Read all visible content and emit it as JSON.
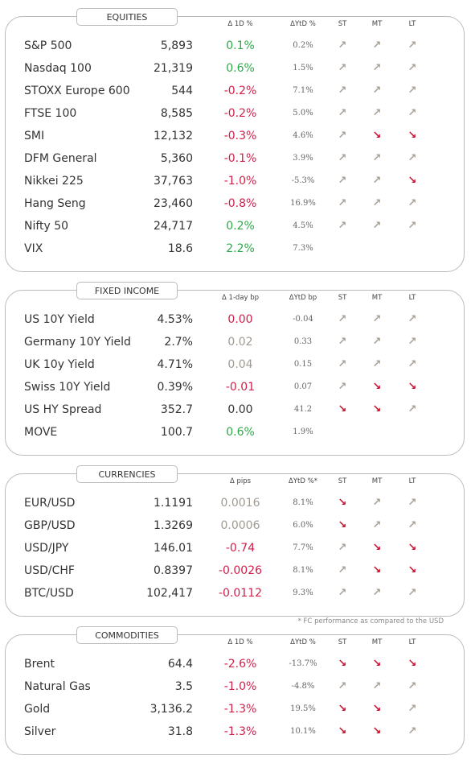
{
  "sections": [
    {
      "title": "EQUITIES",
      "headers": [
        "Δ 1D %",
        "ΔYtD %",
        "ST",
        "MT",
        "LT"
      ],
      "rows": [
        {
          "cells": [
            "S&P 500",
            "5,893",
            "0.1%",
            "0.2%",
            "↗",
            "↗",
            "↗"
          ],
          "change_color": "#2ea84a"
        },
        {
          "cells": [
            "Nasdaq 100",
            "21,319",
            "0.6%",
            "1.5%",
            "↗",
            "↗",
            "↗"
          ],
          "change_color": "#2ea84a"
        },
        {
          "cells": [
            "STOXX Europe 600",
            "544",
            "-0.2%",
            "7.1%",
            "↗",
            "↗",
            "↗"
          ],
          "change_color": "#d0204a"
        },
        {
          "cells": [
            "FTSE 100",
            "8,585",
            "-0.2%",
            "5.0%",
            "↗",
            "↗",
            "↗"
          ],
          "change_color": "#d0204a"
        },
        {
          "cells": [
            "SMI",
            "12,132",
            "-0.3%",
            "4.6%",
            "↗",
            "↘",
            "↘"
          ],
          "change_color": "#d0204a"
        },
        {
          "cells": [
            "DFM General",
            "5,360",
            "-0.1%",
            "3.9%",
            "↗",
            "↗",
            "↗"
          ],
          "change_color": "#d0204a"
        },
        {
          "cells": [
            "Nikkei 225",
            "37,763",
            "-1.0%",
            "-5.3%",
            "↗",
            "↗",
            "↘"
          ],
          "change_color": "#d0204a"
        },
        {
          "cells": [
            "Hang Seng",
            "23,460",
            "-0.8%",
            "16.9%",
            "↗",
            "↗",
            "↗"
          ],
          "change_color": "#d0204a"
        },
        {
          "cells": [
            "Nifty  50",
            "24,717",
            "0.2%",
            "4.5%",
            "↗",
            "↗",
            "↗"
          ],
          "change_color": "#2ea84a"
        },
        {
          "cells": [
            "VIX",
            "18.6",
            "2.2%",
            "7.3%",
            null,
            null,
            null
          ],
          "change_color": "#2ea84a"
        }
      ]
    },
    {
      "title": "FIXED INCOME",
      "headers": [
        "Δ 1-day bp",
        "ΔYtD bp",
        "ST",
        "MT",
        "LT"
      ],
      "rows": [
        {
          "cells": [
            "US 10Y Yield",
            "4.53%",
            "0.00",
            "-0.04",
            "↗",
            "↗",
            "↗"
          ],
          "change_color": "#d0204a"
        },
        {
          "cells": [
            "Germany 10Y Yield",
            "2.7%",
            "0.02",
            "0.33",
            "↗",
            "↗",
            "↗"
          ],
          "change_color": "#a09a90"
        },
        {
          "cells": [
            "UK 10y Yield",
            "4.71%",
            "0.04",
            "0.15",
            "↗",
            "↗",
            "↗"
          ],
          "change_color": "#a09a90"
        },
        {
          "cells": [
            "Swiss 10Y Yield",
            "0.39%",
            "-0.01",
            "0.07",
            "↗",
            "↘",
            "↘"
          ],
          "change_color": "#d0204a"
        },
        {
          "cells": [
            "US HY Spread",
            "352.7",
            "0.00",
            "41.2",
            "↘",
            "↘",
            "↗"
          ],
          "change_color": "#333333"
        },
        {
          "cells": [
            "MOVE",
            "100.7",
            "0.6%",
            "1.9%",
            null,
            null,
            null
          ],
          "change_color": "#2ea84a"
        }
      ]
    },
    {
      "title": "CURRENCIES",
      "headers": [
        "Δ pips",
        "ΔYtD %*",
        "ST",
        "MT",
        "LT"
      ],
      "footnote": "* FC performance as compared to the USD",
      "rows": [
        {
          "cells": [
            "EUR/USD",
            "1.1191",
            "0.0016",
            "8.1%",
            "↘",
            "↗",
            "↗"
          ],
          "change_color": "#a09a90"
        },
        {
          "cells": [
            "GBP/USD",
            "1.3269",
            "0.0006",
            "6.0%",
            "↘",
            "↗",
            "↗"
          ],
          "change_color": "#a09a90"
        },
        {
          "cells": [
            "USD/JPY",
            "146.01",
            "-0.74",
            "7.7%",
            "↗",
            "↘",
            "↘"
          ],
          "change_color": "#d0204a"
        },
        {
          "cells": [
            "USD/CHF",
            "0.8397",
            "-0.0026",
            "8.1%",
            "↗",
            "↘",
            "↘"
          ],
          "change_color": "#d0204a"
        },
        {
          "cells": [
            "BTC/USD",
            "102,417",
            "-0.0112",
            "9.3%",
            "↗",
            "↗",
            "↗"
          ],
          "change_color": "#d0204a"
        }
      ]
    },
    {
      "title": "COMMODITIES",
      "headers": [
        "Δ 1D %",
        "ΔYtD %",
        "ST",
        "MT",
        "LT"
      ],
      "rows": [
        {
          "cells": [
            "Brent",
            "64.4",
            "-2.6%",
            "-13.7%",
            "↘",
            "↘",
            "↘"
          ],
          "change_color": "#d0204a"
        },
        {
          "cells": [
            "Natural Gas",
            "3.5",
            "-1.0%",
            "-4.8%",
            "↗",
            "↗",
            "↗"
          ],
          "change_color": "#d0204a"
        },
        {
          "cells": [
            "Gold",
            "3,136.2",
            "-1.3%",
            "19.5%",
            "↘",
            "↘",
            "↗"
          ],
          "change_color": "#d0204a"
        },
        {
          "cells": [
            "Silver",
            "31.8",
            "-1.3%",
            "10.1%",
            "↘",
            "↘",
            "↗"
          ],
          "change_color": "#d0204a"
        }
      ]
    }
  ]
}
